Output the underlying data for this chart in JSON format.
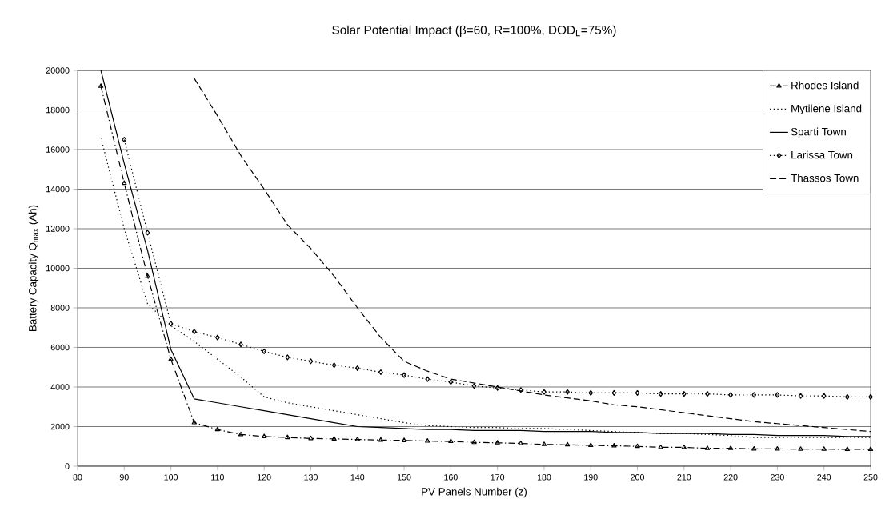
{
  "chart_data": {
    "type": "line",
    "title": "Solar Potential Impact (β=60, R=100%, DOD$_{L}$=75%)",
    "xlabel": "PV Panels Number (z)",
    "ylabel": "Battery Capacity Q$_{max}$ (Ah)",
    "x": [
      85,
      90,
      95,
      100,
      105,
      110,
      115,
      120,
      125,
      130,
      135,
      140,
      145,
      150,
      155,
      160,
      165,
      170,
      175,
      180,
      185,
      190,
      195,
      200,
      205,
      210,
      215,
      220,
      225,
      230,
      235,
      240,
      245,
      250
    ],
    "series": [
      {
        "name": "Rhodes Island",
        "color": "#000000",
        "marker": "triangle",
        "line_style": "dashdotted",
        "values": [
          19200,
          14300,
          9600,
          5400,
          2200,
          1850,
          1600,
          1500,
          1450,
          1400,
          1380,
          1350,
          1320,
          1300,
          1270,
          1250,
          1200,
          1180,
          1150,
          1100,
          1080,
          1050,
          1030,
          1000,
          950,
          950,
          900,
          900,
          870,
          870,
          860,
          860,
          850,
          850
        ]
      },
      {
        "name": "Mytilene Island",
        "color": "#000000",
        "marker": "none",
        "line_style": "dotted",
        "values": [
          16600,
          12000,
          8200,
          7100,
          6300,
          5400,
          4500,
          3500,
          3200,
          3000,
          2800,
          2600,
          2400,
          2200,
          2050,
          2000,
          1950,
          1950,
          1900,
          1900,
          1850,
          1800,
          1750,
          1700,
          1650,
          1650,
          1600,
          1550,
          1450,
          1450,
          1450,
          1450,
          1450,
          1450
        ]
      },
      {
        "name": "Sparti Town",
        "color": "#000000",
        "marker": "none",
        "line_style": "solid",
        "values": [
          20000,
          15300,
          10900,
          5900,
          3400,
          3200,
          3000,
          2800,
          2600,
          2400,
          2200,
          2000,
          1950,
          1900,
          1850,
          1850,
          1800,
          1800,
          1800,
          1750,
          1750,
          1750,
          1700,
          1700,
          1650,
          1650,
          1650,
          1600,
          1600,
          1550,
          1550,
          1550,
          1500,
          1500
        ]
      },
      {
        "name": "Larissa Town",
        "color": "#000000",
        "marker": "diamond",
        "line_style": "dotted",
        "values": [
          null,
          16500,
          11800,
          7200,
          6800,
          6500,
          6150,
          5800,
          5500,
          5300,
          5100,
          4950,
          4750,
          4600,
          4400,
          4250,
          4050,
          3950,
          3850,
          3750,
          3750,
          3700,
          3700,
          3700,
          3650,
          3650,
          3650,
          3600,
          3600,
          3600,
          3550,
          3550,
          3500,
          3500
        ]
      },
      {
        "name": "Thassos Town",
        "color": "#000000",
        "marker": "none",
        "line_style": "dashed",
        "values": [
          null,
          null,
          null,
          null,
          19600,
          17700,
          15700,
          14000,
          12200,
          11000,
          9600,
          8000,
          6500,
          5300,
          4800,
          4400,
          4200,
          4000,
          3800,
          3600,
          3450,
          3300,
          3100,
          3000,
          2850,
          2700,
          2550,
          2400,
          2250,
          2150,
          2050,
          1950,
          1850,
          1750
        ]
      }
    ],
    "xlim": [
      80,
      250
    ],
    "xticks": [
      80,
      90,
      100,
      110,
      120,
      130,
      140,
      150,
      160,
      170,
      180,
      190,
      200,
      210,
      220,
      230,
      240,
      250
    ],
    "ylim": [
      0,
      20000
    ],
    "yticks": [
      0,
      2000,
      4000,
      6000,
      8000,
      10000,
      12000,
      14000,
      16000,
      18000,
      20000
    ],
    "grid": "y",
    "legend": "top right"
  }
}
